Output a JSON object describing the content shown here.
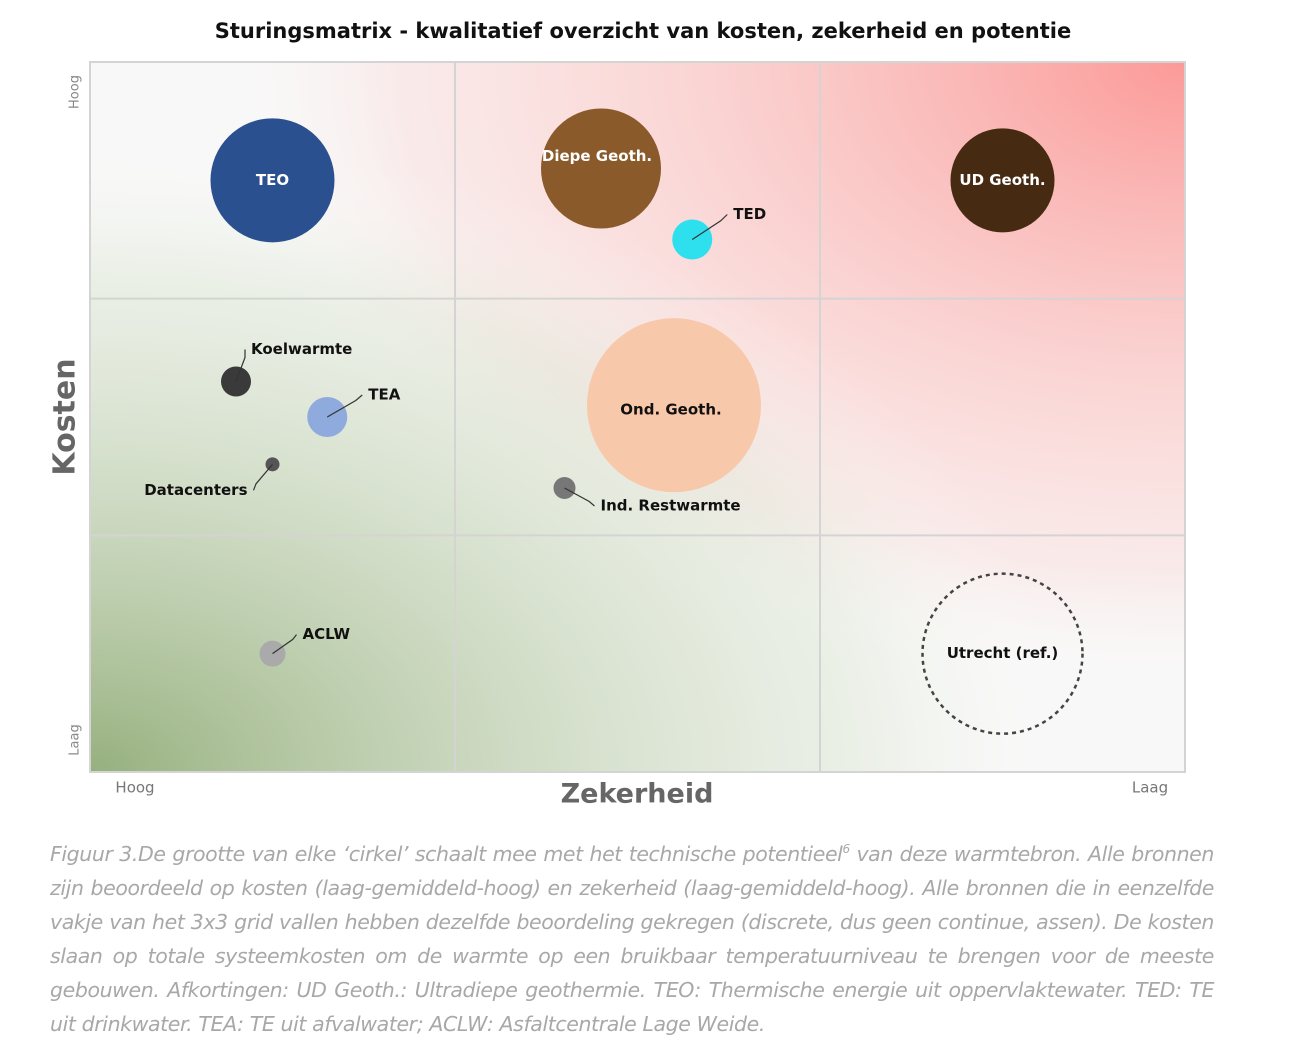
{
  "chart_data": {
    "type": "bubble",
    "title": "Sturingsmatrix - kwalitatief overzicht van kosten, zekerheid en potentie",
    "x_label": "Zekerheid",
    "y_label": "Kosten",
    "xlim": [
      0,
      3
    ],
    "ylim": [
      0,
      3
    ],
    "xticks": [
      {
        "value": 0,
        "label": "Hoog"
      },
      {
        "value": 3,
        "label": "Laag"
      }
    ],
    "yticks": [
      {
        "value": 0,
        "label": "Laag"
      },
      {
        "value": 3,
        "label": "Hoog"
      }
    ],
    "grid": true,
    "points": [
      {
        "label": "TEO",
        "x": 0.5,
        "y": 2.5,
        "size": 62,
        "color": "#2b5090"
      },
      {
        "label": "Diepe Geoth.",
        "x": 1.4,
        "y": 2.55,
        "size": 60,
        "color": "#8b5a2b"
      },
      {
        "label": "TED",
        "x": 1.65,
        "y": 2.25,
        "size": 20,
        "color": "#2ee0ee"
      },
      {
        "label": "UD Geoth.",
        "x": 2.5,
        "y": 2.5,
        "size": 52,
        "color": "#472a12"
      },
      {
        "label": "Koelwarmte",
        "x": 0.4,
        "y": 1.65,
        "size": 15,
        "color": "#3a3a3a"
      },
      {
        "label": "TEA",
        "x": 0.65,
        "y": 1.5,
        "size": 20,
        "color": "#8faadc"
      },
      {
        "label": "Datacenters",
        "x": 0.5,
        "y": 1.3,
        "size": 7,
        "color": "#555555"
      },
      {
        "label": "Ond. Geoth.",
        "x": 1.6,
        "y": 1.55,
        "size": 87,
        "color": "#f8c8aa"
      },
      {
        "label": "Ind. Restwarmte",
        "x": 1.3,
        "y": 1.2,
        "size": 11,
        "color": "#777777"
      },
      {
        "label": "ACLW",
        "x": 0.5,
        "y": 0.5,
        "size": 13,
        "color": "#aaaaaa"
      },
      {
        "label": "Utrecht (ref.)",
        "x": 2.5,
        "y": 0.5,
        "size": 80,
        "color": "#444444",
        "style": "dashed"
      }
    ]
  },
  "caption": [
    "Figuur 3.De grootte van elke ‘cirkel’ schaalt mee met het technische potentieel",
    "6",
    " van deze warmtebron. Alle bronnen zijn beoordeeld op kosten (laag-gemiddeld-hoog) en zekerheid (laag-gemiddeld-hoog). Alle bronnen die in eenzelfde vakje van het 3x3 grid vallen hebben dezelfde beoordeling gekregen (discrete, dus geen continue, assen). De kosten slaan op totale systeemkosten om de warmte op een bruikbaar temperatuurniveau te brengen voor de meeste gebouwen. Afkortingen: UD Geoth.: Ultradiepe geothermie. TEO: Thermische energie uit oppervlaktewater. TED: TE uit drinkwater. TEA: TE uit afvalwater; ACLW: Asfaltcentrale Lage Weide."
  ]
}
